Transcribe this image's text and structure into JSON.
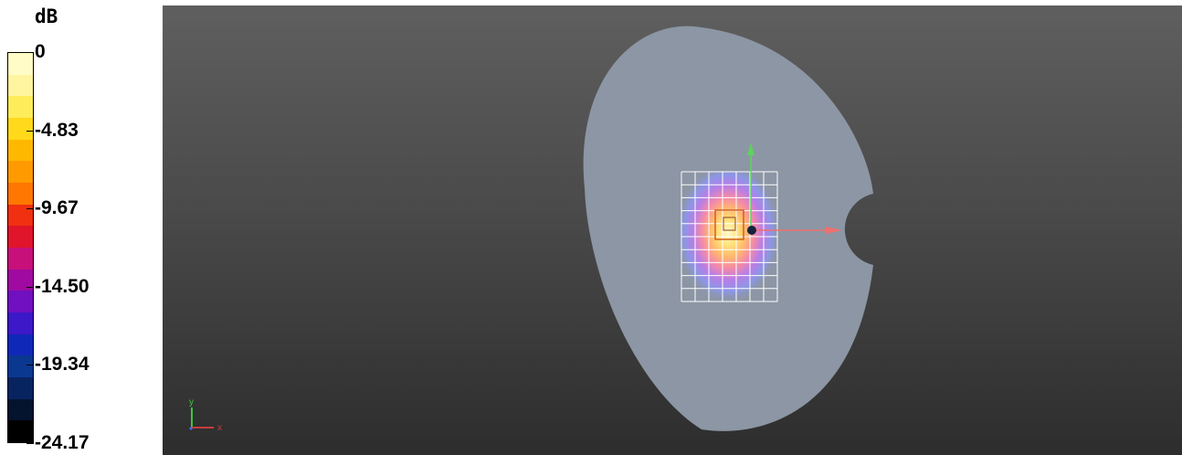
{
  "legend": {
    "unit": "dB",
    "ticks": [
      "0",
      "-4.83",
      "-9.67",
      "-14.50",
      "-19.34",
      "-24.17"
    ],
    "colors": [
      "#fffcc8",
      "#fff5a0",
      "#ffec5a",
      "#ffd91a",
      "#ffb800",
      "#ff9a00",
      "#ff7600",
      "#f03010",
      "#e0142a",
      "#c8107a",
      "#a00aa0",
      "#7010c0",
      "#3c18c8",
      "#1028b8",
      "#0a3890",
      "#082460",
      "#04142e",
      "#000000"
    ]
  },
  "viewport": {
    "axes_triad": {
      "y_label": "y",
      "x_label": "x"
    },
    "colors": {
      "phantom": "#8c96a4",
      "grid": "#ffffff",
      "arrow_x": "#f07070",
      "arrow_y": "#5ed25e"
    }
  }
}
